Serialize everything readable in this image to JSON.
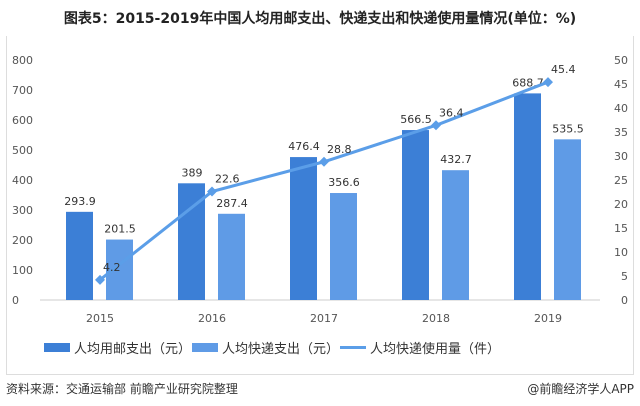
{
  "title": "图表5：2015-2019年中国人均用邮支出、快递支出和快递使用量情况(单位：%)",
  "chart_data": {
    "type": "bar+line",
    "categories": [
      "2015",
      "2016",
      "2017",
      "2018",
      "2019"
    ],
    "series": [
      {
        "name": "人均用邮支出（元）",
        "type": "bar",
        "axis": "left",
        "color": "#3c7fd6",
        "values": [
          293.9,
          389,
          476.4,
          566.5,
          688.7
        ]
      },
      {
        "name": "人均快递支出（元）",
        "type": "bar",
        "axis": "left",
        "color": "#5f9be6",
        "values": [
          201.5,
          287.4,
          356.6,
          432.7,
          535.5
        ]
      },
      {
        "name": "人均快递使用量（件）",
        "type": "line",
        "axis": "right",
        "color": "#5b9ee8",
        "values": [
          4.2,
          22.6,
          28.8,
          36.4,
          45.4
        ]
      }
    ],
    "ylim_left": [
      0,
      800
    ],
    "yticks_left": [
      0,
      100,
      200,
      300,
      400,
      500,
      600,
      700,
      800
    ],
    "ylim_right": [
      0,
      50
    ],
    "yticks_right": [
      0,
      5,
      10,
      15,
      20,
      25,
      30,
      35,
      40,
      45,
      50
    ],
    "legend": "bottom"
  },
  "source": "资料来源：交通运输部 前瞻产业研究院整理",
  "credit": "@前瞻经济学人APP"
}
